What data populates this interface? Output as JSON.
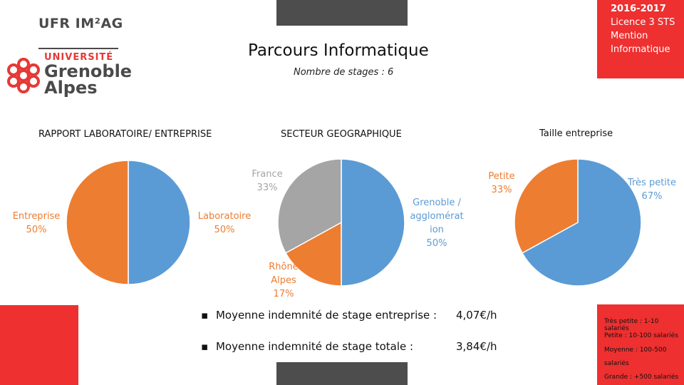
{
  "header": {
    "logo_ufr": "UFR IM²AG",
    "logo_univ": "UNIVERSITÉ",
    "logo_city_1": "Grenoble",
    "logo_city_2": "Alpes",
    "year": "2016-2017",
    "program_1": "Licence 3 STS",
    "program_2": "Mention",
    "program_3": "Informatique",
    "title": "Parcours Informatique",
    "subtitle": "Nombre de stages : 6"
  },
  "chart_data": [
    {
      "type": "pie",
      "title": "RAPPORT LABORATOIRE/ ENTREPRISE",
      "categories": [
        "Laboratoire",
        "Entreprise"
      ],
      "values": [
        50,
        50
      ],
      "labels": [
        [
          "Laboratoire",
          "50%"
        ],
        [
          "Entreprise",
          "50%"
        ]
      ],
      "colors": [
        "#5b9bd5",
        "#ed7d31"
      ]
    },
    {
      "type": "pie",
      "title": "SECTEUR GEOGRAPHIQUE",
      "categories": [
        "Grenoble / agglomération",
        "Rhône Alpes",
        "France"
      ],
      "values": [
        50,
        17,
        33
      ],
      "labels": [
        [
          "Grenoble /",
          "agglomérat",
          "ion",
          "50%"
        ],
        [
          "Rhône",
          "Alpes",
          "17%"
        ],
        [
          "France",
          "33%"
        ]
      ],
      "colors": [
        "#5b9bd5",
        "#ed7d31",
        "#a5a5a5"
      ]
    },
    {
      "type": "pie",
      "title": "Taille entreprise",
      "categories": [
        "Très petite",
        "Petite"
      ],
      "values": [
        67,
        33
      ],
      "labels": [
        [
          "Très petite",
          "67%"
        ],
        [
          "Petite",
          "33%"
        ]
      ],
      "colors": [
        "#5b9bd5",
        "#ed7d31"
      ]
    }
  ],
  "info": {
    "row1_label": "Moyenne indemnité de stage entreprise :",
    "row1_value": "4,07€/h",
    "row2_label": "Moyenne indemnité de stage totale :",
    "row2_value": "3,84€/h"
  },
  "legend": {
    "line1": "Très petite : 1-10 salariés",
    "line2": "Petite : 10-100 salariés",
    "line3": "Moyenne : 100-500",
    "line4": "salariés",
    "line5": "Grande : +500 salariés"
  },
  "colors": {
    "accent_red": "#ee3030",
    "dark_bar": "#4d4d4d",
    "blue": "#5b9bd5",
    "orange": "#ed7d31",
    "gray": "#a5a5a5"
  }
}
